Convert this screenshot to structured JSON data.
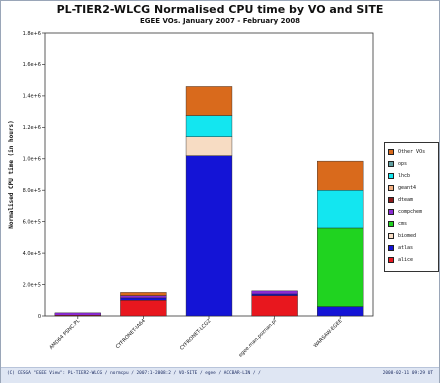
{
  "chart_data": {
    "type": "bar",
    "stacked": true,
    "title": "PL-TIER2-WLCG Normalised CPU time by VO and SITE",
    "subtitle": "EGEE VOs. January 2007 - February 2008",
    "ylabel": "Normalised CPU time (in hours)",
    "xlabel": "",
    "ylim": [
      0,
      1800000
    ],
    "yticks": [
      0,
      200000,
      400000,
      600000,
      800000,
      1000000,
      1200000,
      1400000,
      1600000,
      1800000
    ],
    "ytick_labels": [
      "0",
      "2.0e+5",
      "4.0e+5",
      "6.0e+5",
      "8.0e+5",
      "1.0e+6",
      "1.2e+6",
      "1.4e+6",
      "1.6e+6",
      "1.8e+6"
    ],
    "grid": false,
    "legend_position": "right",
    "categories": [
      "AMD64 PSNC.PL",
      "CYFRONET-IA64",
      "CYFRONET-LCG2",
      "egee.man.poznan.pl",
      "WARSAW-EGEE"
    ],
    "series": [
      {
        "name": "alice",
        "color": "#e8171e",
        "values": [
          5000,
          100000,
          0,
          130000,
          0
        ]
      },
      {
        "name": "atlas",
        "color": "#1414d6",
        "values": [
          0,
          15000,
          1020000,
          10000,
          60000
        ]
      },
      {
        "name": "biomed",
        "color": "#f7dcc3",
        "values": [
          0,
          0,
          120000,
          0,
          0
        ]
      },
      {
        "name": "cms",
        "color": "#20d320",
        "values": [
          0,
          0,
          0,
          0,
          500000
        ]
      },
      {
        "name": "compchem",
        "color": "#8a2bd4",
        "values": [
          15000,
          15000,
          0,
          20000,
          0
        ]
      },
      {
        "name": "dteam",
        "color": "#8b1a1a",
        "values": [
          0,
          0,
          0,
          0,
          0
        ]
      },
      {
        "name": "geant4",
        "color": "#f4b183",
        "values": [
          0,
          0,
          0,
          0,
          0
        ]
      },
      {
        "name": "lhcb",
        "color": "#13e6f0",
        "values": [
          0,
          0,
          135000,
          0,
          240000
        ]
      },
      {
        "name": "ops",
        "color": "#5f9ea0",
        "values": [
          0,
          0,
          0,
          0,
          0
        ]
      },
      {
        "name": "Other VOs",
        "color": "#d96a1c",
        "values": [
          0,
          20000,
          185000,
          0,
          185000
        ]
      }
    ],
    "legend_order": [
      "Other VOs",
      "ops",
      "lhcb",
      "geant4",
      "dteam",
      "compchem",
      "cms",
      "biomed",
      "atlas",
      "alice"
    ]
  },
  "footer": {
    "left": "(C) CESGA \"EGEE View\": PL-TIER2-WLCG / normcpu / 2007:1-2008:2 / VO-SITE / egee / ACCBAR-LIN / /",
    "right": "2008-02-11 09:29 UT"
  }
}
